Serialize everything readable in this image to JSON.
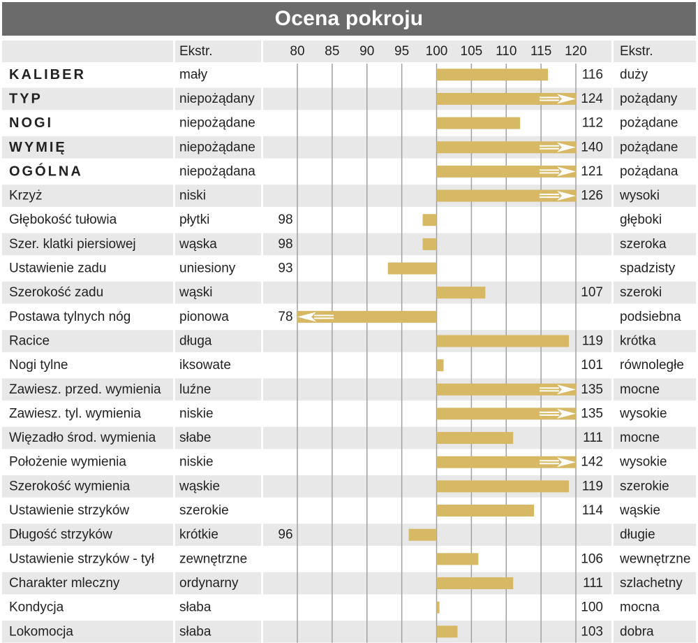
{
  "title": "Ocena pokroju",
  "header": {
    "extreme_left": "Ekstr.",
    "extreme_right": "Ekstr."
  },
  "colors": {
    "bar": "#d6b865",
    "row_shade": "#e8e8e8",
    "title_bg": "#6b6b6b",
    "grid": "#a0a0a0"
  },
  "chart_data": {
    "type": "bar",
    "orientation": "horizontal",
    "baseline": 100,
    "xlim": [
      80,
      120
    ],
    "xticks": [
      80,
      85,
      90,
      95,
      100,
      105,
      110,
      115,
      120
    ],
    "grid": true,
    "rows": [
      {
        "trait": "KALIBER",
        "bold": true,
        "low": "mały",
        "high": "duży",
        "value": 116,
        "overflow": false
      },
      {
        "trait": "TYP",
        "bold": true,
        "low": "niepożądany",
        "high": "pożądany",
        "value": 124,
        "overflow": true
      },
      {
        "trait": "NOGI",
        "bold": true,
        "low": "niepożądane",
        "high": "pożądane",
        "value": 112,
        "overflow": false
      },
      {
        "trait": "WYMIĘ",
        "bold": true,
        "low": "niepożądane",
        "high": "pożądane",
        "value": 140,
        "overflow": true
      },
      {
        "trait": "OGÓLNA",
        "bold": true,
        "low": "niepożądana",
        "high": "pożądana",
        "value": 121,
        "overflow": true
      },
      {
        "trait": "Krzyż",
        "bold": false,
        "low": "niski",
        "high": "wysoki",
        "value": 126,
        "overflow": true
      },
      {
        "trait": "Głębokość tułowia",
        "bold": false,
        "low": "płytki",
        "high": "głęboki",
        "value": 98,
        "overflow": false
      },
      {
        "trait": "Szer. klatki piersiowej",
        "bold": false,
        "low": "wąska",
        "high": "szeroka",
        "value": 98,
        "overflow": false
      },
      {
        "trait": "Ustawienie zadu",
        "bold": false,
        "low": "uniesiony",
        "high": "spadzisty",
        "value": 93,
        "overflow": false
      },
      {
        "trait": "Szerokość zadu",
        "bold": false,
        "low": "wąski",
        "high": "szeroki",
        "value": 107,
        "overflow": false
      },
      {
        "trait": "Postawa tylnych nóg",
        "bold": false,
        "low": "pionowa",
        "high": "podsiebna",
        "value": 78,
        "overflow": true
      },
      {
        "trait": "Racice",
        "bold": false,
        "low": "długa",
        "high": "krótka",
        "value": 119,
        "overflow": false
      },
      {
        "trait": "Nogi tylne",
        "bold": false,
        "low": "iksowate",
        "high": "równoległe",
        "value": 101,
        "overflow": false
      },
      {
        "trait": "Zawiesz. przed. wymienia",
        "bold": false,
        "low": "luźne",
        "high": "mocne",
        "value": 135,
        "overflow": true
      },
      {
        "trait": "Zawiesz. tyl. wymienia",
        "bold": false,
        "low": "niskie",
        "high": "wysokie",
        "value": 135,
        "overflow": true
      },
      {
        "trait": "Więzadło środ. wymienia",
        "bold": false,
        "low": "słabe",
        "high": "mocne",
        "value": 111,
        "overflow": false
      },
      {
        "trait": "Położenie wymienia",
        "bold": false,
        "low": "niskie",
        "high": "wysokie",
        "value": 142,
        "overflow": true
      },
      {
        "trait": "Szerokość wymienia",
        "bold": false,
        "low": "wąskie",
        "high": "szerokie",
        "value": 119,
        "overflow": false
      },
      {
        "trait": "Ustawienie strzyków",
        "bold": false,
        "low": "szerokie",
        "high": "wąskie",
        "value": 114,
        "overflow": false
      },
      {
        "trait": "Długość strzyków",
        "bold": false,
        "low": "krótkie",
        "high": "długie",
        "value": 96,
        "overflow": false
      },
      {
        "trait": "Ustawienie strzyków - tył",
        "bold": false,
        "low": "zewnętrzne",
        "high": "wewnętrzne",
        "value": 106,
        "overflow": false
      },
      {
        "trait": "Charakter mleczny",
        "bold": false,
        "low": "ordynarny",
        "high": "szlachetny",
        "value": 111,
        "overflow": false
      },
      {
        "trait": "Kondycja",
        "bold": false,
        "low": "słaba",
        "high": "mocna",
        "value": 100,
        "overflow": false
      },
      {
        "trait": "Lokomocja",
        "bold": false,
        "low": "słaba",
        "high": "dobra",
        "value": 103,
        "overflow": false
      }
    ]
  }
}
